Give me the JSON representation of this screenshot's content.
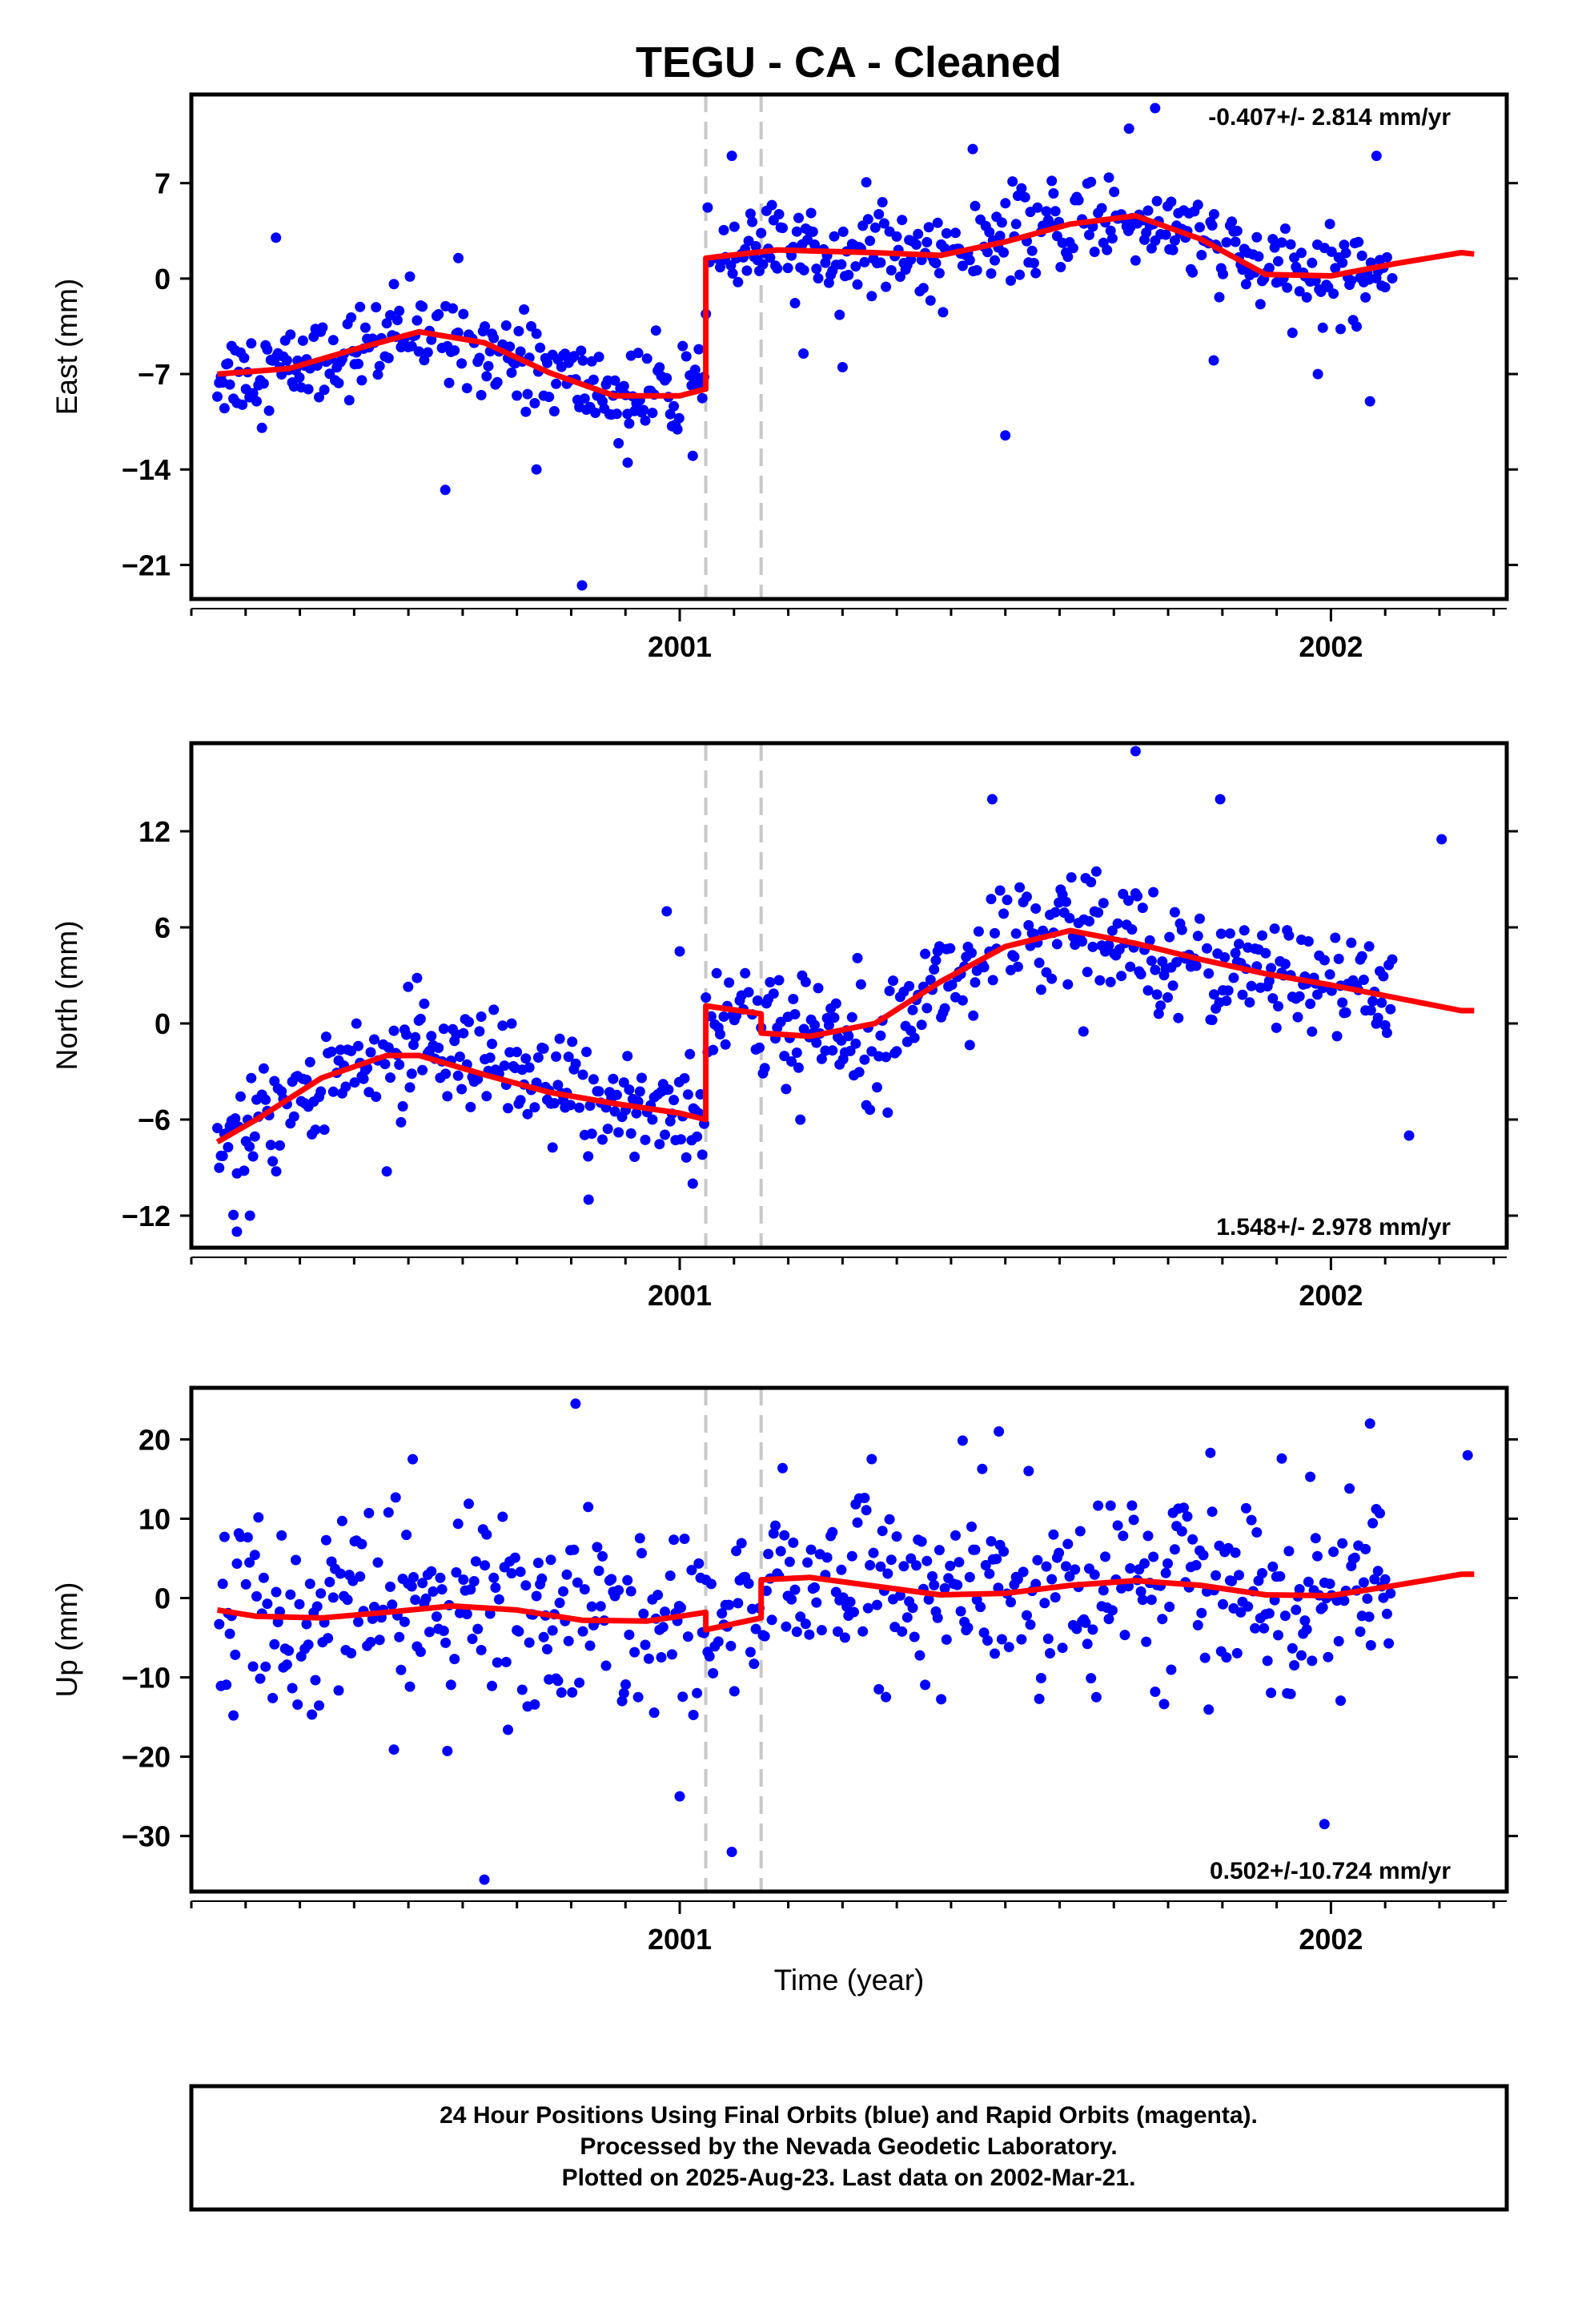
{
  "title": "TEGU  - CA - Cleaned",
  "x_axis_label": "Time (year)",
  "footer": {
    "line1": "24 Hour Positions Using Final Orbits (blue) and Rapid Orbits (magenta).",
    "line2": "Processed by the Nevada Geodetic Laboratory.",
    "line3": "Plotted on 2025-Aug-23. Last data on 2002-Mar-21."
  },
  "colors": {
    "final_orbits": "#0000ff",
    "model_fit": "#ff0000",
    "event_lines": "#c8c8c8",
    "axes": "#000000"
  },
  "chart_data": [
    {
      "type": "scatter",
      "component": "East",
      "ylabel": "East (mm)",
      "xlabel": "",
      "xlim": [
        2000.25,
        2002.27
      ],
      "ylim": [
        -23.5,
        13.5
      ],
      "yticks": [
        7,
        0,
        -7,
        -14,
        -21
      ],
      "xticks": [
        2001,
        2002
      ],
      "rate_text": "-0.407+/- 2.814 mm/yr",
      "rate_position": "top-right",
      "event_lines": [
        2001.04,
        2001.125
      ],
      "model": {
        "step_at": [
          2001.04
        ],
        "segments": [
          {
            "x": [
              2000.29,
              2000.4,
              2000.5,
              2000.6,
              2000.7,
              2000.8,
              2000.9,
              2001.0,
              2001.04
            ],
            "y": [
              -7.0,
              -6.6,
              -5.2,
              -3.9,
              -4.7,
              -6.9,
              -8.6,
              -8.6,
              -8.1
            ]
          },
          {
            "x": [
              2001.04,
              2001.15,
              2001.3,
              2001.4,
              2001.5,
              2001.6,
              2001.7,
              2001.8,
              2001.9,
              2002.0,
              2002.1,
              2002.2,
              2002.22
            ],
            "y": [
              1.5,
              2.1,
              1.9,
              1.7,
              2.7,
              4.0,
              4.6,
              2.9,
              0.3,
              0.2,
              1.1,
              1.9,
              1.8
            ]
          }
        ]
      },
      "points": [
        {
          "x": 2001.5,
          "y": -11.5
        },
        {
          "x": 2000.85,
          "y": -22.5
        },
        {
          "x": 2000.64,
          "y": -15.5
        },
        {
          "x": 2001.69,
          "y": 11.0
        },
        {
          "x": 2001.73,
          "y": 12.5
        },
        {
          "x": 2002.07,
          "y": 9.0
        },
        {
          "x": 2001.45,
          "y": 9.5
        },
        {
          "x": 2001.08,
          "y": 9.0
        },
        {
          "x": 2000.38,
          "y": 3.0
        },
        {
          "x": 2000.66,
          "y": 1.5
        },
        {
          "x": 2002.06,
          "y": -9.0
        },
        {
          "x": 2001.19,
          "y": -5.5
        },
        {
          "x": 2001.25,
          "y": -6.5
        },
        {
          "x": 2001.82,
          "y": -6.0
        },
        {
          "x": 2001.98,
          "y": -7.0
        },
        {
          "x": 2000.78,
          "y": -14.0
        },
        {
          "x": 2000.92,
          "y": -13.5
        },
        {
          "x": 2001.02,
          "y": -13.0
        }
      ]
    },
    {
      "type": "scatter",
      "component": "North",
      "ylabel": "North (mm)",
      "xlabel": "",
      "xlim": [
        2000.25,
        2002.27
      ],
      "ylim": [
        -14.0,
        17.5
      ],
      "yticks": [
        12,
        6,
        0,
        -6,
        -12
      ],
      "xticks": [
        2001,
        2002
      ],
      "rate_text": "1.548+/- 2.978 mm/yr",
      "rate_position": "bottom-right",
      "event_lines": [
        2001.04,
        2001.125
      ],
      "model": {
        "step_at": [
          2001.04,
          2001.125
        ],
        "segments": [
          {
            "x": [
              2000.29,
              2000.35,
              2000.45,
              2000.55,
              2000.6,
              2000.7,
              2000.8,
              2000.9,
              2001.0,
              2001.04
            ],
            "y": [
              -7.4,
              -6.0,
              -3.4,
              -2.0,
              -2.0,
              -3.2,
              -4.3,
              -5.0,
              -5.6,
              -6.0
            ]
          },
          {
            "x": [
              2001.04,
              2001.125
            ],
            "y": [
              1.1,
              0.6
            ]
          },
          {
            "x": [
              2001.125,
              2001.2,
              2001.3,
              2001.4,
              2001.5,
              2001.6,
              2001.7,
              2001.8,
              2001.9,
              2002.0,
              2002.1,
              2002.2,
              2002.22
            ],
            "y": [
              -0.6,
              -0.8,
              0.0,
              2.6,
              4.8,
              5.8,
              5.0,
              4.0,
              3.1,
              2.4,
              1.6,
              0.8,
              0.8
            ]
          }
        ]
      },
      "points": [
        {
          "x": 2001.7,
          "y": 17.0
        },
        {
          "x": 2001.48,
          "y": 14.0
        },
        {
          "x": 2001.83,
          "y": 14.0
        },
        {
          "x": 2002.17,
          "y": 11.5
        },
        {
          "x": 2000.98,
          "y": 7.0
        },
        {
          "x": 2001.62,
          "y": -0.5
        },
        {
          "x": 2000.32,
          "y": -13.0
        },
        {
          "x": 2000.34,
          "y": -12.0
        },
        {
          "x": 2000.86,
          "y": -11.0
        },
        {
          "x": 2002.12,
          "y": -7.0
        },
        {
          "x": 2001.02,
          "y": -10.0
        },
        {
          "x": 2001.0,
          "y": 4.5
        }
      ]
    },
    {
      "type": "scatter",
      "component": "Up",
      "ylabel": "Up (mm)",
      "xlabel": "Time (year)",
      "xlim": [
        2000.25,
        2002.27
      ],
      "ylim": [
        -37.0,
        26.5
      ],
      "yticks": [
        20,
        10,
        0,
        -10,
        -20,
        -30
      ],
      "xticks": [
        2001,
        2002
      ],
      "rate_text": "0.502+/-10.724 mm/yr",
      "rate_position": "bottom-right",
      "event_lines": [
        2001.04,
        2001.125
      ],
      "model": {
        "step_at": [
          2001.04,
          2001.125
        ],
        "segments": [
          {
            "x": [
              2000.29,
              2000.35,
              2000.45,
              2000.55,
              2000.65,
              2000.75,
              2000.85,
              2000.95,
              2001.0,
              2001.04
            ],
            "y": [
              -1.5,
              -2.3,
              -2.5,
              -1.8,
              -1.0,
              -1.5,
              -2.8,
              -2.9,
              -2.3,
              -1.8
            ]
          },
          {
            "x": [
              2001.04,
              2001.125
            ],
            "y": [
              -4.0,
              -2.5
            ]
          },
          {
            "x": [
              2001.125,
              2001.2,
              2001.3,
              2001.4,
              2001.5,
              2001.6,
              2001.7,
              2001.8,
              2001.9,
              2002.0,
              2002.1,
              2002.2,
              2002.22
            ],
            "y": [
              2.3,
              2.6,
              1.5,
              0.4,
              0.6,
              1.6,
              2.2,
              1.6,
              0.4,
              0.3,
              1.6,
              3.0,
              3.0
            ]
          }
        ]
      },
      "points": [
        {
          "x": 2000.84,
          "y": 24.5
        },
        {
          "x": 2002.06,
          "y": 22.0
        },
        {
          "x": 2000.7,
          "y": -35.5
        },
        {
          "x": 2001.08,
          "y": -32.0
        },
        {
          "x": 2001.99,
          "y": -28.5
        },
        {
          "x": 2001.0,
          "y": -25.0
        },
        {
          "x": 2000.59,
          "y": 17.5
        },
        {
          "x": 2002.21,
          "y": 18.0
        },
        {
          "x": 2001.49,
          "y": 21.0
        }
      ]
    }
  ]
}
